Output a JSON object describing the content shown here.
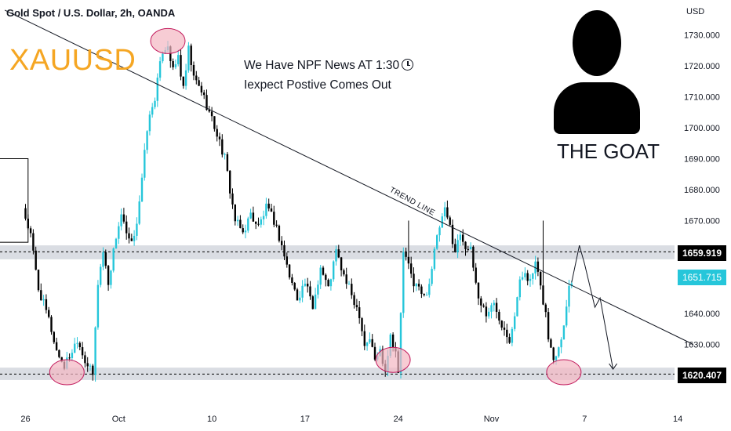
{
  "header": {
    "symbol_line": "Gold Spot / U.S. Dollar, 2h, OANDA",
    "watermark": "XAUUSD",
    "currency": "USD"
  },
  "annotations": {
    "note_line1": "We Have NPF News AT 1:30",
    "note_line2": "Iexpect Postive Comes Out",
    "trend_line_label": "TREND LINE",
    "author_label": "THE GOAT"
  },
  "price_tags": {
    "resistance": "1659.919",
    "current": "1651.715",
    "support": "1620.407"
  },
  "colors": {
    "up": "#26c6da",
    "down": "#000000",
    "zone": "#d1d4dc",
    "watermark": "#f5a623",
    "circle_fill": "#f4b6c2",
    "circle_stroke": "#c2185b"
  },
  "chart_data": {
    "type": "candlestick",
    "title": "Gold Spot / U.S. Dollar, 2h, OANDA",
    "ylabel": "USD",
    "ylim": [
      1615,
      1735
    ],
    "y_ticks": [
      1730,
      1720,
      1710,
      1700,
      1690,
      1680,
      1670,
      1640,
      1630
    ],
    "y_tick_labels": [
      "1730.000",
      "1720.000",
      "1710.000",
      "1700.000",
      "1690.000",
      "1680.000",
      "1670.000",
      "1640.000",
      "1630.000"
    ],
    "x_ticks": [
      {
        "label": "26",
        "i": 0
      },
      {
        "label": "Oct",
        "i": 36
      },
      {
        "label": "10",
        "i": 72
      },
      {
        "label": "17",
        "i": 108
      },
      {
        "label": "24",
        "i": 144
      },
      {
        "label": "Nov",
        "i": 180
      },
      {
        "label": "7",
        "i": 216
      },
      {
        "label": "14",
        "i": 252
      }
    ],
    "candle_count": 212,
    "anchors": [
      [
        0,
        1674
      ],
      [
        3,
        1665
      ],
      [
        6,
        1648
      ],
      [
        10,
        1638
      ],
      [
        13,
        1628
      ],
      [
        16,
        1623
      ],
      [
        19,
        1628
      ],
      [
        21,
        1632
      ],
      [
        24,
        1625
      ],
      [
        27,
        1620
      ],
      [
        29,
        1650
      ],
      [
        31,
        1660
      ],
      [
        33,
        1650
      ],
      [
        36,
        1665
      ],
      [
        38,
        1672
      ],
      [
        40,
        1665
      ],
      [
        42,
        1662
      ],
      [
        44,
        1670
      ],
      [
        46,
        1683
      ],
      [
        48,
        1700
      ],
      [
        51,
        1710
      ],
      [
        54,
        1725
      ],
      [
        56,
        1727
      ],
      [
        58,
        1718
      ],
      [
        60,
        1723
      ],
      [
        62,
        1712
      ],
      [
        64,
        1725
      ],
      [
        66,
        1716
      ],
      [
        69,
        1712
      ],
      [
        72,
        1705
      ],
      [
        75,
        1698
      ],
      [
        78,
        1690
      ],
      [
        80,
        1680
      ],
      [
        82,
        1670
      ],
      [
        85,
        1666
      ],
      [
        88,
        1672
      ],
      [
        91,
        1668
      ],
      [
        94,
        1674
      ],
      [
        97,
        1670
      ],
      [
        100,
        1662
      ],
      [
        103,
        1652
      ],
      [
        106,
        1645
      ],
      [
        109,
        1650
      ],
      [
        112,
        1642
      ],
      [
        115,
        1655
      ],
      [
        118,
        1648
      ],
      [
        121,
        1660
      ],
      [
        124,
        1652
      ],
      [
        127,
        1646
      ],
      [
        130,
        1640
      ],
      [
        132,
        1630
      ],
      [
        134,
        1632
      ],
      [
        136,
        1625
      ],
      [
        138,
        1628
      ],
      [
        140,
        1622
      ],
      [
        142,
        1633
      ],
      [
        144,
        1628
      ],
      [
        145,
        1620
      ],
      [
        146,
        1640
      ],
      [
        147,
        1660
      ],
      [
        149,
        1655
      ],
      [
        151,
        1650
      ],
      [
        153,
        1648
      ],
      [
        155,
        1645
      ],
      [
        157,
        1650
      ],
      [
        159,
        1660
      ],
      [
        161,
        1668
      ],
      [
        163,
        1673
      ],
      [
        165,
        1668
      ],
      [
        167,
        1660
      ],
      [
        169,
        1666
      ],
      [
        171,
        1662
      ],
      [
        173,
        1660
      ],
      [
        176,
        1645
      ],
      [
        179,
        1640
      ],
      [
        182,
        1643
      ],
      [
        185,
        1637
      ],
      [
        188,
        1632
      ],
      [
        190,
        1640
      ],
      [
        192,
        1650
      ],
      [
        194,
        1654
      ],
      [
        196,
        1650
      ],
      [
        198,
        1656
      ],
      [
        200,
        1648
      ],
      [
        202,
        1640
      ],
      [
        203,
        1632
      ],
      [
        205,
        1625
      ],
      [
        207,
        1630
      ],
      [
        209,
        1636
      ],
      [
        211,
        1650
      ]
    ],
    "spikes": [
      [
        148,
        1670
      ],
      [
        162,
        1676
      ],
      [
        200,
        1670
      ]
    ],
    "trend_line": [
      [
        -8,
        1738
      ],
      [
        258,
        1630
      ]
    ],
    "resistance_level": 1659.919,
    "current_price": 1651.715,
    "support_level": 1620.407,
    "resistance_zone": [
      1657.5,
      1662
    ],
    "support_zone": [
      1618.5,
      1622.5
    ],
    "highlight_circles": [
      {
        "i": 16,
        "price": 1621
      },
      {
        "i": 55,
        "price": 1728
      },
      {
        "i": 142,
        "price": 1625
      },
      {
        "i": 208,
        "price": 1621
      }
    ],
    "projection": [
      [
        211,
        1650
      ],
      [
        214,
        1662
      ],
      [
        216,
        1656
      ],
      [
        220,
        1642
      ],
      [
        222,
        1645
      ],
      [
        227,
        1622
      ]
    ],
    "prior_box": {
      "i0": -10,
      "i1": 1,
      "top": 1690,
      "bottom": 1663
    }
  }
}
